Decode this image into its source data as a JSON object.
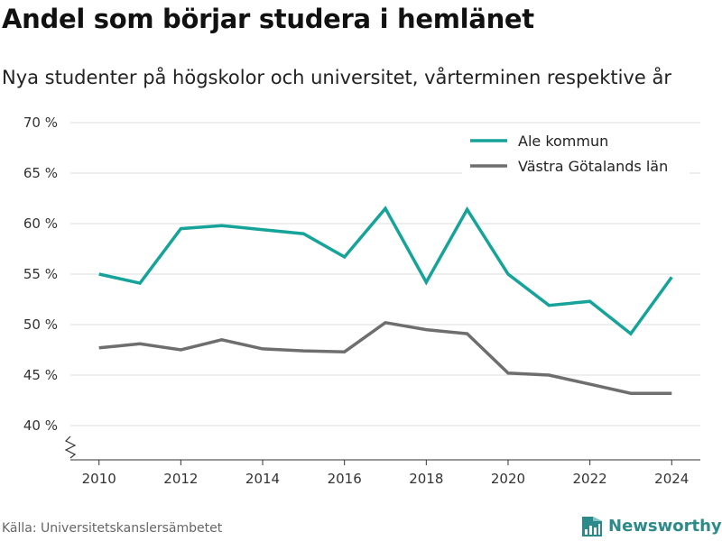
{
  "title": "Andel som börjar studera i hemlänet",
  "subtitle": "Nya studenter på högskolor och universitet, vårterminen respektive år",
  "source": "Källa: Universitetskanslersämbetet",
  "brand": {
    "name": "Newsworthy",
    "icon": "newsworthy-logo-icon",
    "color": "#2d8a8a"
  },
  "chart_data": {
    "type": "line",
    "x": [
      2010,
      2011,
      2012,
      2013,
      2014,
      2015,
      2016,
      2017,
      2018,
      2019,
      2020,
      2021,
      2022,
      2023,
      2024
    ],
    "series": [
      {
        "name": "Ale kommun",
        "color": "#15a39a",
        "values": [
          55.0,
          54.1,
          59.5,
          59.8,
          59.4,
          59.0,
          56.7,
          61.5,
          54.2,
          61.4,
          55.0,
          51.9,
          52.3,
          49.1,
          54.7
        ]
      },
      {
        "name": "Västra Götalands län",
        "color": "#6e6e6e",
        "values": [
          47.7,
          48.1,
          47.5,
          48.5,
          47.6,
          47.4,
          47.3,
          50.2,
          49.5,
          49.1,
          45.2,
          45.0,
          44.1,
          43.2,
          43.2
        ]
      }
    ],
    "ylim": [
      40,
      70
    ],
    "yticks": [
      40,
      45,
      50,
      55,
      60,
      65,
      70
    ],
    "ytick_labels": [
      "40 %",
      "45 %",
      "50 %",
      "55 %",
      "60 %",
      "65 %",
      "70 %"
    ],
    "xticks": [
      2010,
      2012,
      2014,
      2016,
      2018,
      2020,
      2022,
      2024
    ],
    "xtick_labels": [
      "2010",
      "2012",
      "2014",
      "2016",
      "2018",
      "2020",
      "2022",
      "2024"
    ],
    "xlim": [
      2009.3,
      2024.7
    ],
    "xlabel": "",
    "ylabel": "",
    "grid": true,
    "legend": "top-right",
    "axis_break": true
  }
}
